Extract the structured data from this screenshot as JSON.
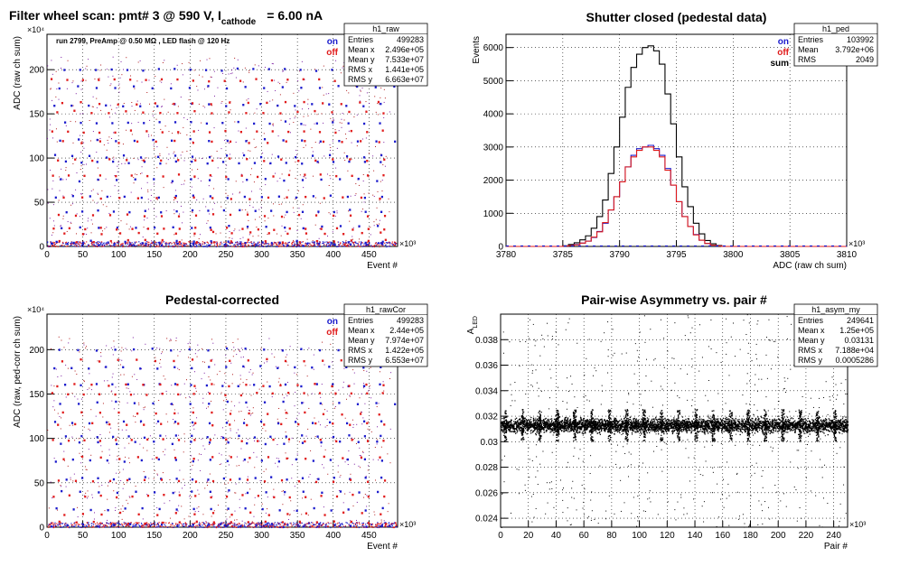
{
  "header": {
    "main": "Filter wheel scan: pmt#   3 @   590 V, I",
    "sub": "cathode",
    "tail": "= 6.00 nA"
  },
  "chart_data": [
    {
      "id": "raw",
      "type": "scatter",
      "title": "",
      "xlabel": "Event #",
      "ylabel": "ADC (raw ch sum)",
      "xlim": [
        0,
        490
      ],
      "ylim": [
        0,
        240
      ],
      "x_ticks": [
        0,
        50,
        100,
        150,
        200,
        250,
        300,
        350,
        400,
        450
      ],
      "y_ticks": [
        0,
        50,
        100,
        150,
        200
      ],
      "x_multiplier": "×10³",
      "y_multiplier": "×10⁴",
      "annotation": "run 2799, PreAmp @ 0.50 MΩ , LED flash @  120 Hz",
      "legend": [
        {
          "label": "on",
          "color": "#1a1acc"
        },
        {
          "label": "off",
          "color": "#e01b1b"
        }
      ],
      "series": [
        {
          "name": "on",
          "color": "#1a1acc",
          "levels": [
            2,
            5,
            22,
            40,
            56,
            75,
            95,
            102,
            120,
            140,
            160,
            180,
            200
          ]
        },
        {
          "name": "off",
          "color": "#e01b1b",
          "levels": [
            6,
            15,
            20,
            35,
            55,
            80,
            98,
            118,
            130,
            152,
            162,
            188
          ]
        }
      ],
      "stats": {
        "name": "h1_raw",
        "rows": [
          [
            "Entries",
            "499283"
          ],
          [
            "Mean x",
            "2.496e+05"
          ],
          [
            "Mean y",
            "7.533e+07"
          ],
          [
            "RMS x",
            "1.441e+05"
          ],
          [
            "RMS y",
            "6.663e+07"
          ]
        ]
      }
    },
    {
      "id": "ped",
      "type": "line",
      "title": "Shutter closed (pedestal data)",
      "xlabel": "ADC (raw ch sum)",
      "ylabel": "Events",
      "xlim": [
        3780,
        3810
      ],
      "ylim": [
        0,
        6400
      ],
      "x_ticks": [
        3780,
        3785,
        3790,
        3795,
        3800,
        3805,
        3810
      ],
      "y_ticks": [
        0,
        1000,
        2000,
        3000,
        4000,
        5000,
        6000
      ],
      "x_multiplier": "×10³",
      "legend": [
        {
          "label": "on",
          "color": "#1a1acc"
        },
        {
          "label": "off",
          "color": "#e01b1b"
        },
        {
          "label": "sum",
          "color": "#000000"
        }
      ],
      "histogram": {
        "x_start": 3785,
        "bin_width": 0.5
      },
      "series": [
        {
          "name": "sum",
          "color": "#000000",
          "values": [
            20,
            60,
            110,
            200,
            320,
            550,
            900,
            1400,
            2200,
            3000,
            3900,
            4800,
            5400,
            5800,
            6000,
            6050,
            5900,
            5500,
            4600,
            3700,
            2700,
            1800,
            1200,
            700,
            380,
            180,
            80,
            30
          ]
        },
        {
          "name": "on",
          "color": "#1a1acc",
          "values": [
            10,
            30,
            60,
            100,
            160,
            270,
            450,
            700,
            1100,
            1500,
            1950,
            2400,
            2750,
            2950,
            3000,
            3050,
            2950,
            2750,
            2350,
            1850,
            1350,
            900,
            600,
            360,
            190,
            90,
            40,
            15
          ]
        },
        {
          "name": "off",
          "color": "#e01b1b",
          "values": [
            10,
            30,
            50,
            100,
            160,
            280,
            440,
            720,
            1100,
            1500,
            1950,
            2400,
            2700,
            2900,
            3000,
            3000,
            2900,
            2700,
            2300,
            1850,
            1350,
            900,
            600,
            350,
            190,
            90,
            40,
            15
          ]
        }
      ],
      "stats": {
        "name": "h1_ped",
        "rows": [
          [
            "Entries",
            "103992"
          ],
          [
            "Mean",
            "3.792e+06"
          ],
          [
            "RMS",
            "2049"
          ]
        ]
      }
    },
    {
      "id": "rawcor",
      "type": "scatter",
      "title": "Pedestal-corrected",
      "xlabel": "Event #",
      "ylabel": "ADC (raw, ped-corr ch sum)",
      "xlim": [
        0,
        490
      ],
      "ylim": [
        0,
        240
      ],
      "x_ticks": [
        0,
        50,
        100,
        150,
        200,
        250,
        300,
        350,
        400,
        450
      ],
      "y_ticks": [
        0,
        50,
        100,
        150,
        200
      ],
      "x_multiplier": "×10³",
      "y_multiplier": "×10⁴",
      "legend": [
        {
          "label": "on",
          "color": "#1a1acc"
        },
        {
          "label": "off",
          "color": "#e01b1b"
        }
      ],
      "series": [
        {
          "name": "on",
          "color": "#1a1acc",
          "levels": [
            2,
            20,
            40,
            55,
            75,
            95,
            102,
            118,
            140,
            160,
            180,
            200
          ]
        },
        {
          "name": "off",
          "color": "#e01b1b",
          "levels": [
            5,
            15,
            35,
            52,
            78,
            98,
            116,
            128,
            150,
            160,
            188
          ]
        }
      ],
      "stats": {
        "name": "h1_rawCor",
        "rows": [
          [
            "Entries",
            "499283"
          ],
          [
            "Mean x",
            "2.44e+05"
          ],
          [
            "Mean y",
            "7.974e+07"
          ],
          [
            "RMS x",
            "1.422e+05"
          ],
          [
            "RMS y",
            "6.553e+07"
          ]
        ]
      }
    },
    {
      "id": "asym",
      "type": "scatter",
      "title": "Pair-wise Asymmetry vs. pair #",
      "xlabel": "Pair #",
      "ylabel": "A",
      "ylabel_sub": "LED",
      "xlim": [
        0,
        250
      ],
      "ylim": [
        0.0233,
        0.04
      ],
      "x_ticks": [
        0,
        20,
        40,
        60,
        80,
        100,
        120,
        140,
        160,
        180,
        200,
        220,
        240
      ],
      "y_ticks": [
        0.024,
        0.026,
        0.028,
        0.03,
        0.032,
        0.034,
        0.036,
        0.038
      ],
      "x_multiplier": "×10³",
      "band": {
        "center": 0.03131,
        "half_width": 0.0004
      },
      "spikes_every": 12.5,
      "stats": {
        "name": "h1_asym_my",
        "rows": [
          [
            "Entries",
            "249641"
          ],
          [
            "Mean x",
            "1.25e+05"
          ],
          [
            "Mean y",
            "0.03131"
          ],
          [
            "RMS x",
            "7.188e+04"
          ],
          [
            "RMS y",
            "0.0005286"
          ]
        ]
      }
    }
  ]
}
